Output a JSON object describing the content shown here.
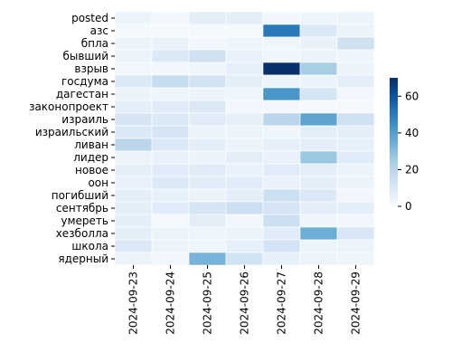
{
  "chart_data": {
    "type": "heatmap",
    "title": "",
    "xlabel": "",
    "ylabel": "",
    "x": [
      "2024-09-23",
      "2024-09-24",
      "2024-09-25",
      "2024-09-26",
      "2024-09-27",
      "2024-09-28",
      "2024-09-29"
    ],
    "y": [
      "posted",
      "азс",
      "бпла",
      "бывший",
      "взрыв",
      "госдума",
      "дагестан",
      "законопроект",
      "израиль",
      "израильский",
      "ливан",
      "лидер",
      "новое",
      "оон",
      "погибший",
      "сентябрь",
      "умереть",
      "хезболла",
      "школа",
      "ядерный"
    ],
    "values": [
      [
        4,
        2,
        7,
        7,
        2,
        3,
        4
      ],
      [
        1,
        1,
        1,
        1,
        50,
        10,
        4
      ],
      [
        4,
        5,
        2,
        3,
        3,
        5,
        14
      ],
      [
        4,
        10,
        14,
        5,
        3,
        4,
        3
      ],
      [
        2,
        2,
        3,
        6,
        70,
        24,
        4
      ],
      [
        10,
        17,
        13,
        7,
        4,
        4,
        7
      ],
      [
        4,
        3,
        4,
        3,
        42,
        12,
        2
      ],
      [
        7,
        8,
        10,
        2,
        2,
        1,
        1
      ],
      [
        12,
        10,
        8,
        6,
        20,
        38,
        14
      ],
      [
        10,
        12,
        4,
        4,
        3,
        7,
        7
      ],
      [
        20,
        10,
        7,
        4,
        6,
        7,
        6
      ],
      [
        4,
        5,
        4,
        7,
        5,
        27,
        8
      ],
      [
        7,
        8,
        8,
        5,
        8,
        7,
        4
      ],
      [
        5,
        10,
        8,
        8,
        5,
        7,
        4
      ],
      [
        7,
        6,
        4,
        7,
        15,
        10,
        2
      ],
      [
        7,
        8,
        12,
        15,
        12,
        7,
        7
      ],
      [
        7,
        1,
        7,
        2,
        15,
        3,
        2
      ],
      [
        7,
        4,
        3,
        4,
        8,
        35,
        11
      ],
      [
        10,
        4,
        3,
        6,
        13,
        4,
        4
      ],
      [
        4,
        2,
        33,
        13,
        6,
        4,
        3
      ]
    ],
    "colorbar": {
      "min": 0,
      "max": 70,
      "ticks": [
        0,
        20,
        40,
        60
      ]
    },
    "colormap": "Blues",
    "grid": false
  }
}
